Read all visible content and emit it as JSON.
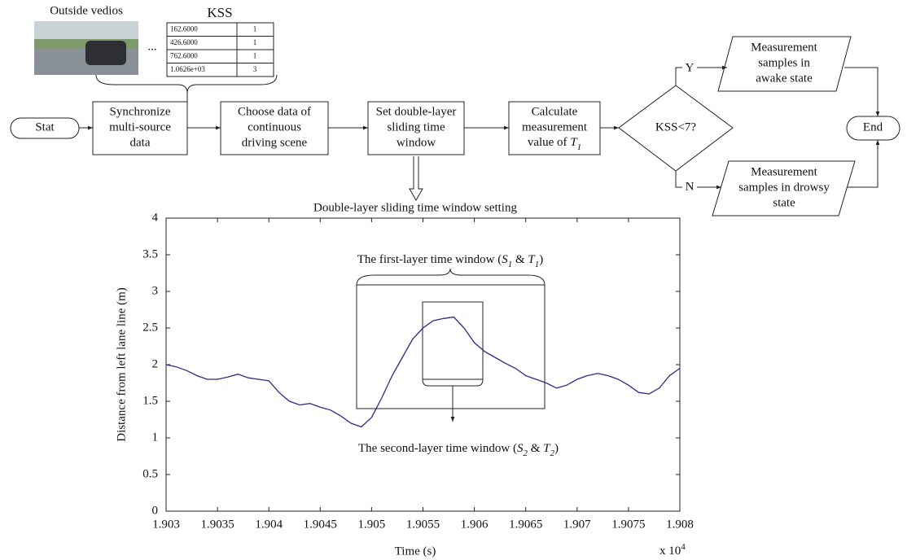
{
  "inputs": {
    "video_label": "Outside vedios",
    "ellipsis": "...",
    "kss_label": "KSS",
    "kss_table": [
      [
        "162.6000",
        "1"
      ],
      [
        "426.6000",
        "1"
      ],
      [
        "762.6000",
        "1"
      ],
      [
        "1.0626e+03",
        "3"
      ]
    ]
  },
  "nodes": [
    {
      "lines": [
        "Stat"
      ]
    },
    {
      "lines": [
        "Synchronize",
        "multi-source",
        "data"
      ]
    },
    {
      "lines": [
        "Choose data of",
        "continuous",
        "driving scene"
      ]
    },
    {
      "lines": [
        "Set double-layer",
        "sliding time",
        "window"
      ]
    },
    {
      "lines": [
        "Calculate",
        "measurement",
        "value of "
      ],
      "symbol": "T",
      "subscript": "1"
    },
    {
      "lines": [
        "KSS<7?"
      ]
    },
    {
      "lines": [
        "Measurement",
        "samples in",
        "awake state"
      ]
    },
    {
      "lines": [
        "Measurement",
        "samples in drowsy",
        "state"
      ]
    },
    {
      "lines": [
        "End"
      ]
    }
  ],
  "branches": {
    "yes": "Y",
    "no": "N"
  },
  "chart_data": {
    "type": "line",
    "title": "Double-layer sliding time window setting",
    "x_label": "Time (s)",
    "y_label": "Distance from left lane line (m)",
    "x_scale": "x 10",
    "x_scale_exponent": "4",
    "x": [
      1.903,
      1.9031,
      1.9032,
      1.9033,
      1.9034,
      1.9035,
      1.9036,
      1.9037,
      1.9038,
      1.9039,
      1.904,
      1.9041,
      1.9042,
      1.9043,
      1.9044,
      1.9045,
      1.9046,
      1.9047,
      1.9048,
      1.9049,
      1.905,
      1.9051,
      1.9052,
      1.9053,
      1.9054,
      1.9055,
      1.9056,
      1.9057,
      1.9058,
      1.9059,
      1.906,
      1.9061,
      1.9062,
      1.9063,
      1.9064,
      1.9065,
      1.9066,
      1.9067,
      1.9068,
      1.9069,
      1.907,
      1.9071,
      1.9072,
      1.9073,
      1.9074,
      1.9075,
      1.9076,
      1.9077,
      1.9078,
      1.9079,
      1.908
    ],
    "y": [
      2.0,
      1.97,
      1.92,
      1.85,
      1.8,
      1.8,
      1.83,
      1.87,
      1.82,
      1.8,
      1.78,
      1.62,
      1.5,
      1.45,
      1.47,
      1.42,
      1.38,
      1.3,
      1.2,
      1.15,
      1.28,
      1.55,
      1.85,
      2.1,
      2.35,
      2.5,
      2.6,
      2.63,
      2.65,
      2.5,
      2.3,
      2.18,
      2.1,
      2.02,
      1.95,
      1.85,
      1.8,
      1.75,
      1.68,
      1.72,
      1.8,
      1.85,
      1.88,
      1.85,
      1.8,
      1.72,
      1.62,
      1.6,
      1.68,
      1.85,
      1.95
    ],
    "color": "#2b2b85",
    "xlim": [
      1.903,
      1.908
    ],
    "ylim": [
      0,
      4
    ],
    "xticks": [
      1.903,
      1.9035,
      1.904,
      1.9045,
      1.905,
      1.9055,
      1.906,
      1.9065,
      1.907,
      1.9075,
      1.908
    ],
    "yticks": [
      0,
      0.5,
      1,
      1.5,
      2,
      2.5,
      3,
      3.5,
      4
    ],
    "annotations": [
      {
        "parts": [
          "The first-layer time window (",
          "S",
          "1",
          " & ",
          "T",
          "1",
          ")"
        ]
      },
      {
        "parts": [
          "The second-layer time window (",
          "S",
          "2",
          " & ",
          "T",
          "2",
          ")"
        ]
      }
    ]
  }
}
